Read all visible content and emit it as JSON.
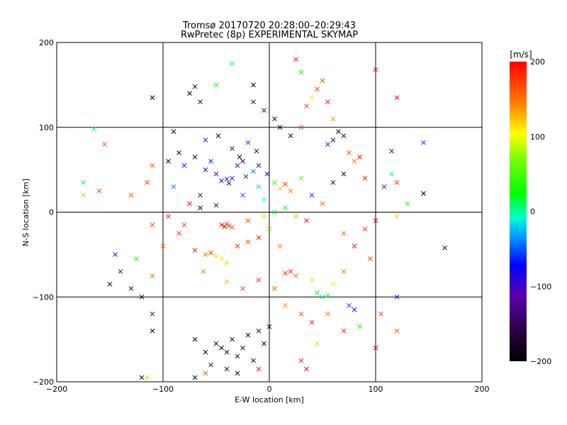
{
  "chart_data": {
    "type": "scatter",
    "title": "Tromsø 20170720 20:28:00–20:29:43",
    "subtitle": "RwPretec (8p) EXPERIMENTAL SKYMAP",
    "xlabel": "E-W location [km]",
    "ylabel": "N-S location [km]",
    "xlim": [
      -200,
      200
    ],
    "ylim": [
      -200,
      200
    ],
    "x_ticks": [
      -200,
      -100,
      0,
      100,
      200
    ],
    "y_ticks": [
      -200,
      -100,
      0,
      100,
      200
    ],
    "grid": true,
    "colorbar": {
      "label": "[m/s]",
      "range": [
        -200,
        200
      ],
      "ticks": [
        -200,
        -100,
        0,
        100,
        200
      ],
      "colormap": "black-purple-blue-cyan-green-yellow-red"
    },
    "marker_note": "small dots and x markers, colored by velocity",
    "points": [
      [
        -45,
        37,
        -80,
        "x"
      ],
      [
        -40,
        39,
        -120,
        "x"
      ],
      [
        -38,
        34,
        -150,
        "x"
      ],
      [
        -35,
        40,
        -60,
        "x"
      ],
      [
        -30,
        55,
        -100,
        "x"
      ],
      [
        -25,
        60,
        -170,
        "x"
      ],
      [
        -22,
        42,
        -90,
        "x"
      ],
      [
        -50,
        45,
        -130,
        "x"
      ],
      [
        -55,
        60,
        -60,
        "x"
      ],
      [
        -60,
        50,
        -90,
        "x"
      ],
      [
        -70,
        65,
        -180,
        "x"
      ],
      [
        -80,
        55,
        -60,
        "x"
      ],
      [
        -15,
        48,
        -40,
        "x"
      ],
      [
        -10,
        30,
        -20,
        "x"
      ],
      [
        5,
        35,
        40,
        "x"
      ],
      [
        10,
        28,
        120,
        "x"
      ],
      [
        15,
        33,
        180,
        "x"
      ],
      [
        20,
        25,
        150,
        "x"
      ],
      [
        30,
        40,
        60,
        "x"
      ],
      [
        -5,
        15,
        -10,
        "x"
      ],
      [
        -65,
        20,
        -150,
        "x"
      ],
      [
        -45,
        -15,
        190,
        "x"
      ],
      [
        -42,
        -17,
        200,
        "x"
      ],
      [
        -40,
        -14,
        180,
        "x"
      ],
      [
        -38,
        -16,
        170,
        "x"
      ],
      [
        -35,
        -18,
        160,
        "x"
      ],
      [
        -70,
        -45,
        190,
        "x"
      ],
      [
        -60,
        -50,
        150,
        "x"
      ],
      [
        -55,
        -48,
        180,
        "x"
      ],
      [
        -50,
        -52,
        120,
        "x"
      ],
      [
        -45,
        -55,
        90,
        "x"
      ],
      [
        -40,
        -60,
        80,
        "x"
      ],
      [
        -30,
        -40,
        180,
        "x"
      ],
      [
        -20,
        -35,
        170,
        "x"
      ],
      [
        -10,
        -30,
        200,
        "x"
      ],
      [
        0,
        -20,
        60,
        "x"
      ],
      [
        10,
        -40,
        140,
        "x"
      ],
      [
        20,
        -70,
        190,
        "x"
      ],
      [
        25,
        -75,
        160,
        "x"
      ],
      [
        15,
        -72,
        180,
        "x"
      ],
      [
        40,
        -80,
        120,
        "x"
      ],
      [
        45,
        -95,
        20,
        "x"
      ],
      [
        50,
        -100,
        -20,
        "x"
      ],
      [
        55,
        -98,
        40,
        "x"
      ],
      [
        60,
        -85,
        110,
        "x"
      ],
      [
        70,
        -70,
        150,
        "x"
      ],
      [
        75,
        -110,
        -50,
        "x"
      ],
      [
        -50,
        -155,
        -190,
        "x"
      ],
      [
        -45,
        -160,
        -200,
        "x"
      ],
      [
        -40,
        -165,
        -180,
        "x"
      ],
      [
        -35,
        -150,
        -170,
        "x"
      ],
      [
        -30,
        -170,
        -190,
        "x"
      ],
      [
        -25,
        -160,
        -160,
        "x"
      ],
      [
        -20,
        -145,
        -200,
        "x"
      ],
      [
        -15,
        -175,
        -180,
        "x"
      ],
      [
        -10,
        -140,
        -150,
        "x"
      ],
      [
        -5,
        -155,
        -190,
        "x"
      ],
      [
        0,
        -135,
        -170,
        "x"
      ],
      [
        -60,
        -165,
        -200,
        "x"
      ],
      [
        -55,
        -180,
        -180,
        "x"
      ],
      [
        -70,
        -150,
        -190,
        "x"
      ],
      [
        -40,
        -185,
        -160,
        "x"
      ],
      [
        -30,
        -190,
        -200,
        "x"
      ],
      [
        -10,
        -185,
        190,
        "x"
      ],
      [
        -60,
        -190,
        160,
        "x"
      ],
      [
        -110,
        -140,
        -200,
        "x"
      ],
      [
        -120,
        -100,
        -180,
        "x"
      ],
      [
        -110,
        -120,
        -160,
        "x"
      ],
      [
        -130,
        -90,
        -150,
        "x"
      ],
      [
        -140,
        -70,
        -120,
        "x"
      ],
      [
        -145,
        -50,
        -100,
        "x"
      ],
      [
        -150,
        -85,
        -170,
        "x"
      ],
      [
        -110,
        -75,
        160,
        "x"
      ],
      [
        -100,
        -40,
        150,
        "x"
      ],
      [
        -125,
        -55,
        20,
        "x"
      ],
      [
        -95,
        -5,
        190,
        "x"
      ],
      [
        -80,
        -15,
        170,
        "x"
      ],
      [
        -65,
        5,
        -200,
        "x"
      ],
      [
        -50,
        8,
        -170,
        "x"
      ],
      [
        -160,
        25,
        170,
        "x"
      ],
      [
        -175,
        20,
        60,
        "x"
      ],
      [
        -175,
        35,
        10,
        "x"
      ],
      [
        -155,
        80,
        170,
        "x"
      ],
      [
        -165,
        98,
        0,
        "x"
      ],
      [
        -130,
        20,
        170,
        "x"
      ],
      [
        -115,
        35,
        180,
        "x"
      ],
      [
        -110,
        -15,
        170,
        "x"
      ],
      [
        -110,
        55,
        160,
        "x"
      ],
      [
        -95,
        60,
        -200,
        "x"
      ],
      [
        -110,
        135,
        -200,
        "x"
      ],
      [
        -90,
        95,
        -190,
        "x"
      ],
      [
        -75,
        140,
        -200,
        "x"
      ],
      [
        -70,
        148,
        -160,
        "x"
      ],
      [
        -65,
        130,
        -200,
        "x"
      ],
      [
        -50,
        150,
        30,
        "x"
      ],
      [
        -35,
        175,
        20,
        "x"
      ],
      [
        -15,
        150,
        -200,
        "x"
      ],
      [
        -15,
        130,
        -190,
        "x"
      ],
      [
        -5,
        120,
        -180,
        "x"
      ],
      [
        5,
        110,
        -170,
        "x"
      ],
      [
        10,
        100,
        -200,
        "x"
      ],
      [
        20,
        90,
        -180,
        "x"
      ],
      [
        30,
        100,
        170,
        "x"
      ],
      [
        35,
        125,
        170,
        "x"
      ],
      [
        40,
        135,
        110,
        "x"
      ],
      [
        45,
        145,
        170,
        "x"
      ],
      [
        50,
        155,
        170,
        "x"
      ],
      [
        55,
        130,
        200,
        "x"
      ],
      [
        60,
        110,
        140,
        "x"
      ],
      [
        65,
        95,
        -200,
        "x"
      ],
      [
        60,
        85,
        -150,
        "x"
      ],
      [
        55,
        80,
        -130,
        "x"
      ],
      [
        70,
        90,
        -170,
        "x"
      ],
      [
        75,
        70,
        170,
        "x"
      ],
      [
        80,
        60,
        150,
        "x"
      ],
      [
        85,
        65,
        200,
        "x"
      ],
      [
        90,
        40,
        190,
        "x"
      ],
      [
        70,
        45,
        -190,
        "x"
      ],
      [
        60,
        35,
        -150,
        "x"
      ],
      [
        40,
        20,
        -60,
        "x"
      ],
      [
        50,
        10,
        150,
        "x"
      ],
      [
        25,
        180,
        200,
        "x"
      ],
      [
        30,
        165,
        20,
        "x"
      ],
      [
        100,
        168,
        200,
        "x"
      ],
      [
        120,
        135,
        200,
        "x"
      ],
      [
        145,
        82,
        -60,
        "x"
      ],
      [
        115,
        72,
        -100,
        "x"
      ],
      [
        115,
        45,
        0,
        "x"
      ],
      [
        120,
        35,
        180,
        "x"
      ],
      [
        108,
        30,
        -100,
        "x"
      ],
      [
        130,
        10,
        40,
        "x"
      ],
      [
        145,
        22,
        -200,
        "x"
      ],
      [
        165,
        -42,
        -200,
        "x"
      ],
      [
        120,
        -5,
        120,
        "x"
      ],
      [
        100,
        -10,
        200,
        "x"
      ],
      [
        120,
        -100,
        -100,
        "x"
      ],
      [
        105,
        -120,
        180,
        "x"
      ],
      [
        120,
        -140,
        160,
        "x"
      ],
      [
        100,
        -160,
        200,
        "x"
      ],
      [
        80,
        -115,
        -80,
        "x"
      ],
      [
        85,
        -135,
        20,
        "x"
      ],
      [
        70,
        -140,
        180,
        "x"
      ],
      [
        45,
        -155,
        120,
        "x"
      ],
      [
        30,
        -175,
        190,
        "x"
      ],
      [
        35,
        -185,
        200,
        "x"
      ],
      [
        -70,
        -195,
        -200,
        "x"
      ],
      [
        -120,
        -195,
        -190,
        "x"
      ],
      [
        -115,
        -195,
        120,
        "x"
      ],
      [
        80,
        -40,
        190,
        "x"
      ],
      [
        70,
        -25,
        160,
        "x"
      ],
      [
        90,
        -20,
        180,
        "x"
      ],
      [
        95,
        -55,
        170,
        "x"
      ],
      [
        35,
        -10,
        200,
        "x"
      ],
      [
        25,
        -5,
        60,
        "x"
      ],
      [
        15,
        5,
        30,
        "x"
      ],
      [
        5,
        0,
        20,
        "x"
      ],
      [
        -5,
        -5,
        80,
        "x"
      ],
      [
        -20,
        -10,
        170,
        "x"
      ],
      [
        -25,
        20,
        -50,
        "x"
      ],
      [
        -10,
        55,
        -130,
        "x"
      ],
      [
        -28,
        65,
        -190,
        "x"
      ],
      [
        -12,
        72,
        -160,
        "x"
      ],
      [
        -2,
        45,
        -70,
        "x"
      ],
      [
        -20,
        82,
        -110,
        "x"
      ],
      [
        -35,
        75,
        -170,
        "x"
      ],
      [
        -48,
        90,
        -190,
        "x"
      ],
      [
        -60,
        85,
        -110,
        "x"
      ],
      [
        -85,
        70,
        -200,
        "x"
      ],
      [
        -90,
        30,
        -40,
        "x"
      ],
      [
        -75,
        10,
        200,
        "x"
      ],
      [
        -85,
        -25,
        180,
        "x"
      ],
      [
        -62,
        -70,
        150,
        "x"
      ],
      [
        -40,
        -82,
        130,
        "x"
      ],
      [
        -25,
        -90,
        170,
        "x"
      ],
      [
        -10,
        -80,
        190,
        "x"
      ],
      [
        5,
        -90,
        160,
        "x"
      ],
      [
        15,
        -110,
        140,
        "x"
      ],
      [
        30,
        -120,
        170,
        "x"
      ],
      [
        40,
        -130,
        190,
        "x"
      ],
      [
        55,
        -120,
        150,
        "x"
      ]
    ]
  }
}
